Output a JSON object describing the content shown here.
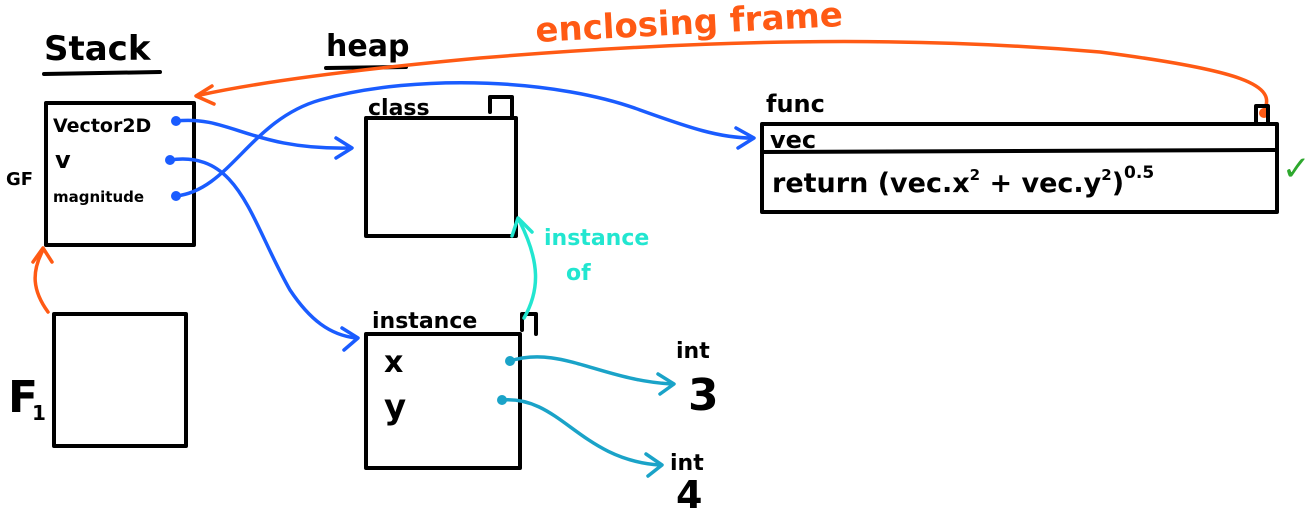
{
  "colors": {
    "ink": "#000000",
    "blue": "#1a5cff",
    "orange": "#ff5a14",
    "cyan": "#22e6d0",
    "teal": "#1aa3c8",
    "green": "#2ea82e"
  },
  "labels": {
    "stack": "Stack",
    "heap": "heap",
    "enclosing_frame": "enclosing frame",
    "gf": "GF",
    "f1": "F",
    "f1_sub": "1",
    "class": "class",
    "instance": "instance",
    "instance_of_line1": "instance",
    "instance_of_line2": "of",
    "func": "func",
    "func_param": "vec",
    "func_body": "return (vec.x",
    "func_body_mid": " + vec.y",
    "func_body_close": ")",
    "sq1": "2",
    "sq2": "2",
    "exponent": "0.5",
    "check": "✓",
    "int1_label": "int",
    "int1_value": "3",
    "int2_label": "int",
    "int2_value": "4"
  },
  "global_frame": {
    "vars": [
      "Vector2D",
      "v",
      "magnitude"
    ]
  },
  "instance_attrs": [
    "x",
    "y"
  ]
}
